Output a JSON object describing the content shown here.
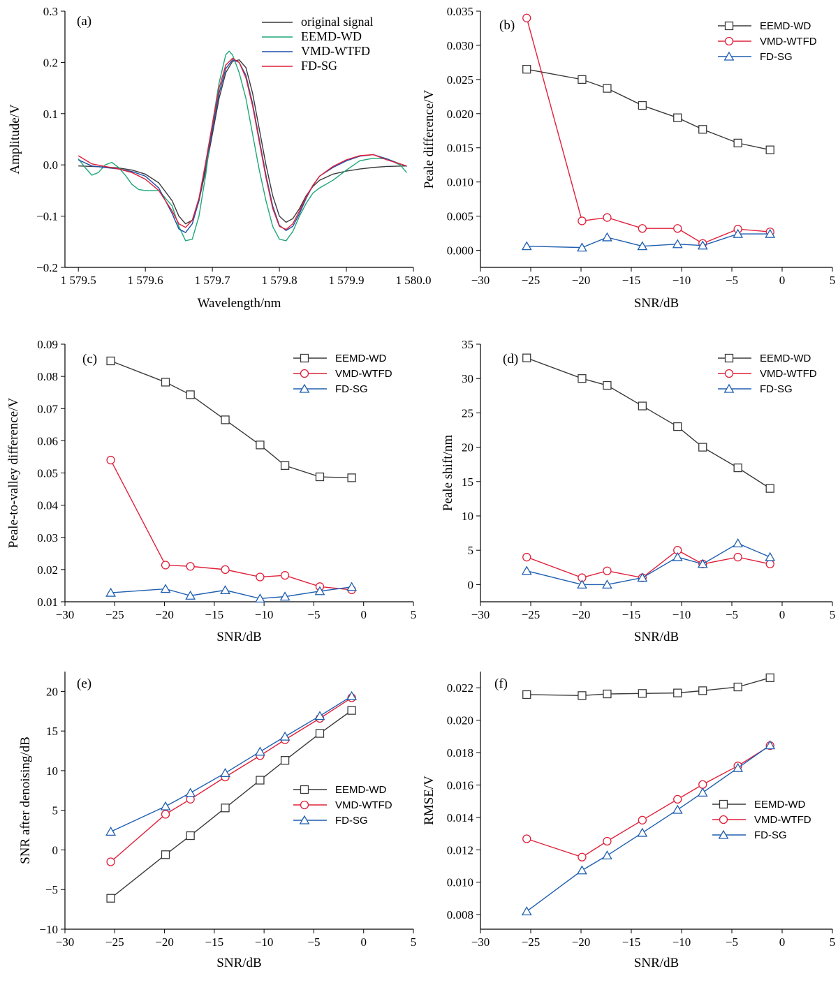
{
  "colors": {
    "original": "#3a3a3a",
    "eemd_a": "#1fa77a",
    "vmd_a": "#1f4fa8",
    "fdsg_a": "#e0203a",
    "eemd": "#3a3a3a",
    "vmd": "#e0203a",
    "fdsg": "#1f5fb0"
  },
  "chart_data": [
    {
      "id": "a",
      "type": "line",
      "panel_label": "(a)",
      "xlabel": "Wavelength/nm",
      "ylabel": "Amplitude/V",
      "xlim": [
        1579.48,
        1580.0
      ],
      "ylim": [
        -0.2,
        0.3
      ],
      "xticks": [
        1579.5,
        1579.6,
        1579.7,
        1579.8,
        1579.9,
        1580.0
      ],
      "xtick_labels": [
        "1 579.5",
        "1 579.6",
        "1 579.7",
        "1 579.8",
        "1 579.9",
        "1 580.0"
      ],
      "yticks": [
        -0.2,
        -0.1,
        0.0,
        0.1,
        0.2,
        0.3
      ],
      "ytick_labels": [
        "−0.2",
        "−0.1",
        "0.0",
        "0.1",
        "0.2",
        "0.3"
      ],
      "legend": "top-right",
      "legend_style": "serif-plain",
      "series": [
        {
          "name": "original signal",
          "color_key": "original",
          "marker": "none",
          "x": [
            1579.5,
            1579.52,
            1579.54,
            1579.56,
            1579.58,
            1579.6,
            1579.62,
            1579.64,
            1579.65,
            1579.66,
            1579.67,
            1579.68,
            1579.69,
            1579.7,
            1579.71,
            1579.72,
            1579.73,
            1579.74,
            1579.75,
            1579.76,
            1579.77,
            1579.78,
            1579.79,
            1579.8,
            1579.81,
            1579.82,
            1579.83,
            1579.84,
            1579.85,
            1579.86,
            1579.88,
            1579.9,
            1579.92,
            1579.94,
            1579.96,
            1579.99
          ],
          "y": [
            -0.002,
            -0.003,
            -0.004,
            -0.006,
            -0.01,
            -0.018,
            -0.035,
            -0.07,
            -0.1,
            -0.115,
            -0.108,
            -0.07,
            -0.01,
            0.06,
            0.13,
            0.18,
            0.202,
            0.205,
            0.19,
            0.14,
            0.07,
            0.0,
            -0.06,
            -0.1,
            -0.112,
            -0.105,
            -0.085,
            -0.06,
            -0.042,
            -0.03,
            -0.018,
            -0.012,
            -0.008,
            -0.005,
            -0.003,
            -0.002
          ]
        },
        {
          "name": "EEMD-WD",
          "color_key": "eemd_a",
          "marker": "none",
          "x": [
            1579.5,
            1579.51,
            1579.52,
            1579.53,
            1579.54,
            1579.55,
            1579.56,
            1579.57,
            1579.58,
            1579.59,
            1579.6,
            1579.62,
            1579.64,
            1579.65,
            1579.66,
            1579.67,
            1579.68,
            1579.69,
            1579.7,
            1579.71,
            1579.72,
            1579.725,
            1579.73,
            1579.74,
            1579.75,
            1579.76,
            1579.77,
            1579.78,
            1579.79,
            1579.8,
            1579.81,
            1579.82,
            1579.83,
            1579.84,
            1579.85,
            1579.86,
            1579.88,
            1579.9,
            1579.92,
            1579.94,
            1579.96,
            1579.98,
            1579.99
          ],
          "y": [
            0.012,
            -0.005,
            -0.02,
            -0.015,
            0.0,
            0.005,
            -0.005,
            -0.02,
            -0.038,
            -0.048,
            -0.05,
            -0.05,
            -0.08,
            -0.12,
            -0.148,
            -0.145,
            -0.1,
            -0.02,
            0.08,
            0.16,
            0.215,
            0.222,
            0.215,
            0.18,
            0.13,
            0.06,
            -0.01,
            -0.07,
            -0.12,
            -0.145,
            -0.148,
            -0.13,
            -0.1,
            -0.075,
            -0.055,
            -0.045,
            -0.03,
            -0.01,
            0.008,
            0.013,
            0.012,
            0.0,
            -0.015
          ]
        },
        {
          "name": "VMD-WTFD",
          "color_key": "vmd_a",
          "marker": "none",
          "x": [
            1579.5,
            1579.52,
            1579.54,
            1579.56,
            1579.58,
            1579.6,
            1579.62,
            1579.64,
            1579.65,
            1579.66,
            1579.67,
            1579.68,
            1579.69,
            1579.7,
            1579.71,
            1579.72,
            1579.73,
            1579.74,
            1579.75,
            1579.76,
            1579.77,
            1579.78,
            1579.79,
            1579.8,
            1579.81,
            1579.82,
            1579.83,
            1579.84,
            1579.85,
            1579.86,
            1579.88,
            1579.9,
            1579.92,
            1579.94,
            1579.96,
            1579.99
          ],
          "y": [
            0.01,
            -0.002,
            -0.005,
            -0.008,
            -0.013,
            -0.022,
            -0.045,
            -0.095,
            -0.125,
            -0.132,
            -0.115,
            -0.07,
            0.0,
            0.07,
            0.14,
            0.188,
            0.205,
            0.2,
            0.175,
            0.12,
            0.05,
            -0.02,
            -0.08,
            -0.118,
            -0.128,
            -0.12,
            -0.095,
            -0.065,
            -0.04,
            -0.022,
            -0.005,
            0.008,
            0.017,
            0.02,
            0.012,
            -0.003
          ]
        },
        {
          "name": "FD-SG",
          "color_key": "fdsg_a",
          "marker": "none",
          "x": [
            1579.5,
            1579.52,
            1579.54,
            1579.56,
            1579.58,
            1579.6,
            1579.62,
            1579.64,
            1579.65,
            1579.66,
            1579.67,
            1579.68,
            1579.69,
            1579.7,
            1579.71,
            1579.72,
            1579.73,
            1579.74,
            1579.75,
            1579.76,
            1579.77,
            1579.78,
            1579.79,
            1579.8,
            1579.81,
            1579.82,
            1579.83,
            1579.84,
            1579.85,
            1579.86,
            1579.88,
            1579.9,
            1579.92,
            1579.94,
            1579.96,
            1579.99
          ],
          "y": [
            0.018,
            0.002,
            -0.003,
            -0.008,
            -0.015,
            -0.028,
            -0.05,
            -0.09,
            -0.115,
            -0.122,
            -0.108,
            -0.065,
            0.005,
            0.08,
            0.15,
            0.195,
            0.208,
            0.2,
            0.17,
            0.115,
            0.045,
            -0.025,
            -0.085,
            -0.12,
            -0.126,
            -0.115,
            -0.09,
            -0.062,
            -0.04,
            -0.022,
            -0.003,
            0.01,
            0.018,
            0.02,
            0.01,
            -0.002
          ]
        }
      ]
    },
    {
      "id": "b",
      "type": "line",
      "panel_label": "(b)",
      "xlabel": "SNR/dB",
      "ylabel": "Peale difference/V",
      "xlim": [
        -30,
        5
      ],
      "ylim": [
        -0.0025,
        0.035
      ],
      "xticks": [
        -30,
        -25,
        -20,
        -15,
        -10,
        -5,
        0,
        5
      ],
      "xtick_labels": [
        "−30",
        "−25",
        "−20",
        "−15",
        "−10",
        "−5",
        "0",
        "5"
      ],
      "yticks": [
        0.0,
        0.005,
        0.01,
        0.015,
        0.02,
        0.025,
        0.03,
        0.035
      ],
      "ytick_labels": [
        "0.000",
        "0.005",
        "0.010",
        "0.015",
        "0.020",
        "0.025",
        "0.030",
        "0.035"
      ],
      "legend": "top-right",
      "legend_style": "sans-marker",
      "series": [
        {
          "name": "EEMD-WD",
          "color_key": "eemd",
          "marker": "square",
          "x": [
            -25.4,
            -19.9,
            -17.4,
            -13.9,
            -10.4,
            -7.9,
            -4.4,
            -1.2
          ],
          "y": [
            0.0265,
            0.025,
            0.0237,
            0.0212,
            0.0194,
            0.0177,
            0.0157,
            0.0147
          ]
        },
        {
          "name": "VMD-WTFD",
          "color_key": "vmd",
          "marker": "circle",
          "x": [
            -25.4,
            -19.9,
            -17.4,
            -13.9,
            -10.4,
            -7.9,
            -4.4,
            -1.2
          ],
          "y": [
            0.034,
            0.0043,
            0.0048,
            0.0032,
            0.0032,
            0.001,
            0.0031,
            0.0027
          ]
        },
        {
          "name": " FD-SG",
          "color_key": "fdsg",
          "marker": "triangle",
          "x": [
            -25.4,
            -19.9,
            -17.4,
            -13.9,
            -10.4,
            -7.9,
            -4.4,
            -1.2
          ],
          "y": [
            0.0006,
            0.0004,
            0.0019,
            0.0006,
            0.0009,
            0.0007,
            0.0024,
            0.0024
          ]
        }
      ]
    },
    {
      "id": "c",
      "type": "line",
      "panel_label": "(c)",
      "xlabel": "SNR/dB",
      "ylabel": "Peale-to-valley difference/V",
      "xlim": [
        -30,
        5
      ],
      "ylim": [
        0.01,
        0.09
      ],
      "xticks": [
        -30,
        -25,
        -20,
        -15,
        -10,
        -5,
        0,
        5
      ],
      "xtick_labels": [
        "−30",
        "−25",
        "−20",
        "−15",
        "−10",
        "−5",
        "0",
        "5"
      ],
      "yticks": [
        0.01,
        0.02,
        0.03,
        0.04,
        0.05,
        0.06,
        0.07,
        0.08,
        0.09
      ],
      "ytick_labels": [
        "0.01",
        "0.02",
        "0.03",
        "0.04",
        "0.05",
        "0.06",
        "0.07",
        "0.08",
        "0.09"
      ],
      "legend": "top-right",
      "legend_style": "sans-marker",
      "series": [
        {
          "name": "EEMD-WD",
          "color_key": "eemd",
          "marker": "square",
          "x": [
            -25.4,
            -19.9,
            -17.4,
            -13.9,
            -10.4,
            -7.9,
            -4.4,
            -1.2
          ],
          "y": [
            0.0848,
            0.0782,
            0.0743,
            0.0665,
            0.0587,
            0.0523,
            0.0488,
            0.0485
          ]
        },
        {
          "name": "VMD-WTFD",
          "color_key": "vmd",
          "marker": "circle",
          "x": [
            -25.4,
            -19.9,
            -17.4,
            -13.9,
            -10.4,
            -7.9,
            -4.4,
            -1.2
          ],
          "y": [
            0.054,
            0.0214,
            0.021,
            0.02,
            0.0177,
            0.0182,
            0.0147,
            0.0137
          ]
        },
        {
          "name": " FD-SG",
          "color_key": "fdsg",
          "marker": "triangle",
          "x": [
            -25.4,
            -19.9,
            -17.4,
            -13.9,
            -10.4,
            -7.9,
            -4.4,
            -1.2
          ],
          "y": [
            0.0128,
            0.014,
            0.0119,
            0.0136,
            0.011,
            0.0116,
            0.0133,
            0.0146
          ]
        }
      ]
    },
    {
      "id": "d",
      "type": "line",
      "panel_label": "(d)",
      "xlabel": "SNR/dB",
      "ylabel": "Peale shift/nm",
      "xlim": [
        -30,
        5
      ],
      "ylim": [
        -2.5,
        35
      ],
      "xticks": [
        -30,
        -25,
        -20,
        -15,
        -10,
        -5,
        0,
        5
      ],
      "xtick_labels": [
        "−30",
        "−25",
        "−20",
        "−15",
        "−10",
        "−5",
        "0",
        "5"
      ],
      "yticks": [
        0,
        5,
        10,
        15,
        20,
        25,
        30,
        35
      ],
      "ytick_labels": [
        "0",
        "5",
        "10",
        "15",
        "20",
        "25",
        "30",
        "35"
      ],
      "legend": "top-right",
      "legend_style": "sans-marker",
      "series": [
        {
          "name": "EEMD-WD",
          "color_key": "eemd",
          "marker": "square",
          "x": [
            -25.4,
            -19.9,
            -17.4,
            -13.9,
            -10.4,
            -7.9,
            -4.4,
            -1.2
          ],
          "y": [
            33,
            30,
            29,
            26,
            23,
            20,
            17,
            14
          ]
        },
        {
          "name": "VMD-WTFD",
          "color_key": "vmd",
          "marker": "circle",
          "x": [
            -25.4,
            -19.9,
            -17.4,
            -13.9,
            -10.4,
            -7.9,
            -4.4,
            -1.2
          ],
          "y": [
            4,
            1,
            2,
            1,
            5,
            3,
            4,
            3
          ]
        },
        {
          "name": " FD-SG",
          "color_key": "fdsg",
          "marker": "triangle",
          "x": [
            -25.4,
            -19.9,
            -17.4,
            -13.9,
            -10.4,
            -7.9,
            -4.4,
            -1.2
          ],
          "y": [
            2,
            0,
            0,
            1,
            4,
            3,
            6,
            4
          ]
        }
      ]
    },
    {
      "id": "e",
      "type": "line",
      "panel_label": "(e)",
      "xlabel": "SNR/dB",
      "ylabel": "SNR after denoising/dB",
      "xlim": [
        -30,
        5
      ],
      "ylim": [
        -10,
        22.5
      ],
      "xticks": [
        -30,
        -25,
        -20,
        -15,
        -10,
        -5,
        0,
        5
      ],
      "xtick_labels": [
        "−30",
        "−25",
        "−20",
        "−15",
        "−10",
        "−5",
        "0",
        "5"
      ],
      "yticks": [
        -10,
        -5,
        0,
        5,
        10,
        15,
        20
      ],
      "ytick_labels": [
        "−10",
        "−5",
        "0",
        "5",
        "10",
        "15",
        "20"
      ],
      "legend": "center-right",
      "legend_style": "sans-marker",
      "series": [
        {
          "name": "EEMD-WD",
          "color_key": "eemd",
          "marker": "square",
          "x": [
            -25.4,
            -19.9,
            -17.4,
            -13.9,
            -10.4,
            -7.9,
            -4.4,
            -1.2
          ],
          "y": [
            -6.1,
            -0.6,
            1.8,
            5.3,
            8.8,
            11.3,
            14.7,
            17.6
          ]
        },
        {
          "name": "VMD-WTFD",
          "color_key": "vmd",
          "marker": "circle",
          "x": [
            -25.4,
            -19.9,
            -17.4,
            -13.9,
            -10.4,
            -7.9,
            -4.4,
            -1.2
          ],
          "y": [
            -1.5,
            4.5,
            6.4,
            9.2,
            11.9,
            13.9,
            16.6,
            19.2
          ]
        },
        {
          "name": " FD-SG",
          "color_key": "fdsg",
          "marker": "triangle",
          "x": [
            -25.4,
            -19.9,
            -17.4,
            -13.9,
            -10.4,
            -7.9,
            -4.4,
            -1.2
          ],
          "y": [
            2.3,
            5.5,
            7.2,
            9.7,
            12.4,
            14.3,
            16.9,
            19.4
          ]
        }
      ]
    },
    {
      "id": "f",
      "type": "line",
      "panel_label": "(f)",
      "xlabel": "SNR/dB",
      "ylabel": "RMSE/V",
      "xlim": [
        -30,
        5
      ],
      "ylim": [
        0.0071,
        0.023
      ],
      "xticks": [
        -30,
        -25,
        -20,
        -15,
        -10,
        -5,
        0,
        5
      ],
      "xtick_labels": [
        "−30",
        "−25",
        "−20",
        "−15",
        "−10",
        "−5",
        "0",
        "5"
      ],
      "yticks": [
        0.008,
        0.01,
        0.012,
        0.014,
        0.016,
        0.018,
        0.02,
        0.022
      ],
      "ytick_labels": [
        "0.008",
        "0.010",
        "0.012",
        "0.014",
        "0.016",
        "0.018",
        "0.020",
        "0.022"
      ],
      "legend": "center-right",
      "legend_style": "sans-marker",
      "series": [
        {
          "name": "EEMD-WD",
          "color_key": "eemd",
          "marker": "square",
          "x": [
            -25.4,
            -19.9,
            -17.4,
            -13.9,
            -10.4,
            -7.9,
            -4.4,
            -1.2
          ],
          "y": [
            0.02158,
            0.02152,
            0.02162,
            0.02165,
            0.02168,
            0.02182,
            0.02205,
            0.02262
          ]
        },
        {
          "name": "VMD-WTFD",
          "color_key": "vmd",
          "marker": "circle",
          "x": [
            -25.4,
            -19.9,
            -17.4,
            -13.9,
            -10.4,
            -7.9,
            -4.4,
            -1.2
          ],
          "y": [
            0.01268,
            0.01155,
            0.01253,
            0.01383,
            0.01512,
            0.01603,
            0.01718,
            0.01843
          ]
        },
        {
          "name": " FD-SG",
          "color_key": "fdsg",
          "marker": "triangle",
          "x": [
            -25.4,
            -19.9,
            -17.4,
            -13.9,
            -10.4,
            -7.9,
            -4.4,
            -1.2
          ],
          "y": [
            0.0082,
            0.01073,
            0.01165,
            0.01305,
            0.01447,
            0.01553,
            0.01705,
            0.01845
          ]
        }
      ]
    }
  ]
}
